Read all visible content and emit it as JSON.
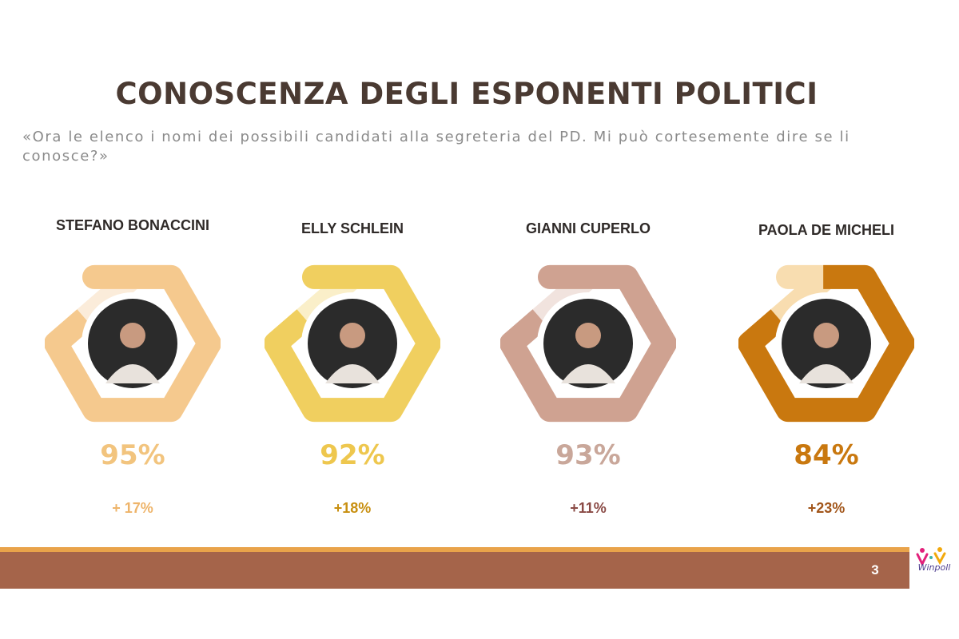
{
  "title": "CONOSCENZA DEGLI ESPONENTI POLITICI",
  "subtitle": "«Ora le elenco i nomi dei possibili candidati alla segreteria del PD. Mi può cortesemente dire se li conosce?»",
  "page_number": "3",
  "logo": {
    "text": "Winpoll"
  },
  "chart_data": {
    "type": "pie",
    "subtype": "hexagonal-donut",
    "categories": [
      "STEFANO BONACCINI",
      "ELLY SCHLEIN",
      "GIANNI CUPERLO",
      "PAOLA DE MICHELI"
    ],
    "values": [
      95,
      92,
      93,
      84
    ],
    "value_labels": [
      "95%",
      "92%",
      "93%",
      "84%"
    ],
    "delta_labels": [
      "+ 17%",
      "+18%",
      "+11%",
      "+23%"
    ],
    "colors": [
      "#f5c98e",
      "#f0cf5f",
      "#cfa291",
      "#c9780f"
    ],
    "remainder_colors": [
      "#fbecda",
      "#faefc9",
      "#f1e3de",
      "#f8ddb0"
    ],
    "label_colors": [
      "#f2c47e",
      "#eec74e",
      "#c9a79a",
      "#c9780f"
    ],
    "delta_colors": [
      "#eeb46a",
      "#c88f10",
      "#8a4a45",
      "#a2561b"
    ]
  }
}
